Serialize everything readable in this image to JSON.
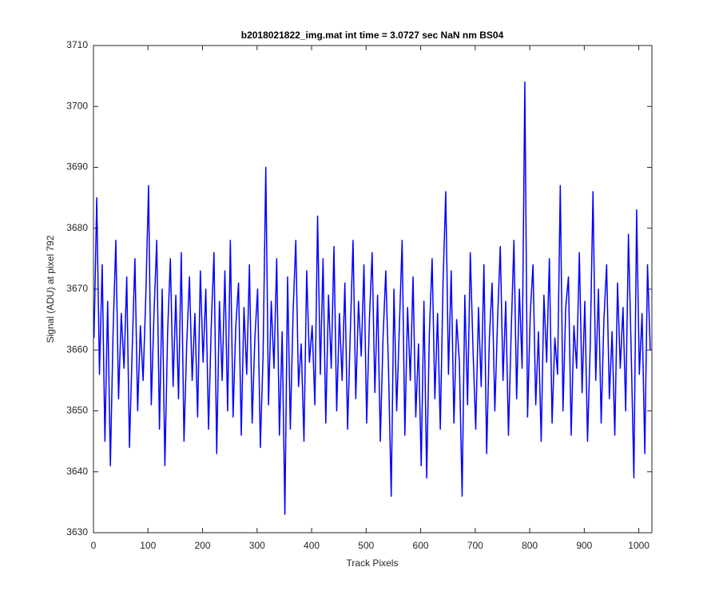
{
  "chart_data": {
    "type": "line",
    "title": "b2018021822_img.mat int time = 3.0727 sec  NaN nm BS04",
    "xlabel": "Track Pixels",
    "ylabel": "Signal (ADU) at pixel 792",
    "color": "#0000ff",
    "xlim": [
      0,
      1024
    ],
    "ylim": [
      3630,
      3710
    ],
    "xticks": [
      0,
      100,
      200,
      300,
      400,
      500,
      600,
      700,
      800,
      900,
      1000
    ],
    "yticks": [
      3630,
      3640,
      3650,
      3660,
      3670,
      3680,
      3690,
      3700,
      3710
    ],
    "x": [
      1,
      6,
      11,
      16,
      21,
      26,
      31,
      36,
      41,
      46,
      51,
      56,
      61,
      66,
      71,
      76,
      81,
      86,
      91,
      96,
      101,
      106,
      111,
      116,
      121,
      126,
      131,
      136,
      141,
      146,
      151,
      156,
      161,
      166,
      171,
      176,
      181,
      186,
      191,
      196,
      201,
      206,
      211,
      216,
      221,
      226,
      231,
      236,
      241,
      246,
      251,
      256,
      261,
      266,
      271,
      276,
      281,
      286,
      291,
      296,
      301,
      306,
      311,
      316,
      321,
      326,
      331,
      336,
      341,
      346,
      351,
      356,
      361,
      366,
      371,
      376,
      381,
      386,
      391,
      396,
      401,
      406,
      411,
      416,
      421,
      426,
      431,
      436,
      441,
      446,
      451,
      456,
      461,
      466,
      471,
      476,
      481,
      486,
      491,
      496,
      501,
      506,
      511,
      516,
      521,
      526,
      531,
      536,
      541,
      546,
      551,
      556,
      561,
      566,
      571,
      576,
      581,
      586,
      591,
      596,
      601,
      606,
      611,
      616,
      621,
      626,
      631,
      636,
      641,
      646,
      651,
      656,
      661,
      666,
      671,
      676,
      681,
      686,
      691,
      696,
      701,
      706,
      711,
      716,
      721,
      726,
      731,
      736,
      741,
      746,
      751,
      756,
      761,
      766,
      771,
      776,
      781,
      786,
      791,
      796,
      801,
      806,
      811,
      816,
      821,
      826,
      831,
      836,
      841,
      846,
      851,
      856,
      861,
      866,
      871,
      876,
      881,
      886,
      891,
      896,
      901,
      906,
      911,
      916,
      921,
      926,
      931,
      936,
      941,
      946,
      951,
      956,
      961,
      966,
      971,
      976,
      981,
      986,
      991,
      996,
      1001,
      1006,
      1011,
      1016,
      1021
    ],
    "values": [
      3662,
      3685,
      3656,
      3674,
      3645,
      3668,
      3641,
      3663,
      3678,
      3652,
      3666,
      3657,
      3672,
      3644,
      3660,
      3675,
      3650,
      3664,
      3655,
      3669,
      3687,
      3651,
      3666,
      3678,
      3647,
      3670,
      3641,
      3663,
      3675,
      3654,
      3669,
      3652,
      3676,
      3645,
      3661,
      3672,
      3655,
      3666,
      3649,
      3673,
      3658,
      3670,
      3647,
      3664,
      3676,
      3643,
      3668,
      3655,
      3673,
      3650,
      3678,
      3649,
      3664,
      3671,
      3646,
      3667,
      3656,
      3674,
      3648,
      3662,
      3670,
      3644,
      3659,
      3690,
      3651,
      3668,
      3657,
      3675,
      3646,
      3663,
      3633,
      3672,
      3647,
      3666,
      3678,
      3654,
      3661,
      3645,
      3673,
      3658,
      3664,
      3651,
      3682,
      3656,
      3675,
      3648,
      3669,
      3657,
      3677,
      3650,
      3666,
      3655,
      3671,
      3647,
      3663,
      3678,
      3652,
      3668,
      3659,
      3674,
      3648,
      3665,
      3676,
      3653,
      3669,
      3645,
      3662,
      3673,
      3657,
      3636,
      3670,
      3650,
      3664,
      3678,
      3646,
      3667,
      3655,
      3672,
      3649,
      3661,
      3641,
      3668,
      3639,
      3663,
      3675,
      3652,
      3666,
      3647,
      3671,
      3686,
      3656,
      3673,
      3648,
      3665,
      3658,
      3636,
      3669,
      3651,
      3676,
      3660,
      3647,
      3667,
      3654,
      3674,
      3643,
      3662,
      3671,
      3650,
      3665,
      3677,
      3655,
      3668,
      3646,
      3663,
      3678,
      3652,
      3670,
      3657,
      3704,
      3649,
      3666,
      3674,
      3651,
      3663,
      3645,
      3669,
      3658,
      3675,
      3648,
      3662,
      3656,
      3687,
      3650,
      3667,
      3672,
      3646,
      3664,
      3657,
      3676,
      3653,
      3668,
      3645,
      3661,
      3686,
      3655,
      3670,
      3648,
      3665,
      3674,
      3652,
      3663,
      3646,
      3671,
      3657,
      3667,
      3650,
      3679,
      3660,
      3639,
      3683,
      3656,
      3666,
      3643,
      3674,
      3660
    ]
  }
}
